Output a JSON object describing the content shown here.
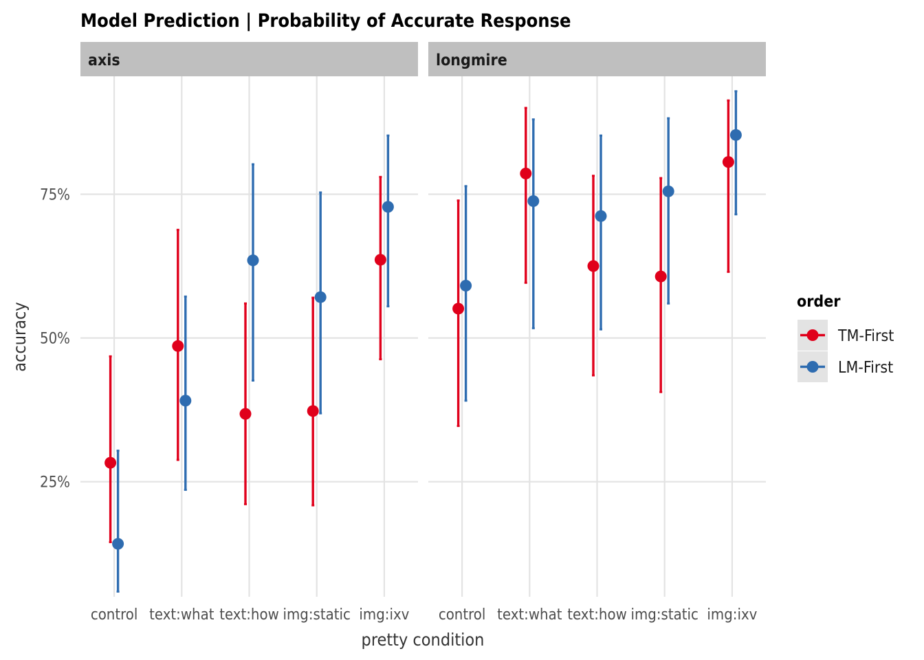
{
  "chart_data": {
    "type": "pointrange",
    "title": "Model Prediction | Probability of Accurate Response",
    "xlabel": "pretty condition",
    "ylabel": "accuracy",
    "categories": [
      "control",
      "text:what",
      "text:how",
      "img:static",
      "img:ixv"
    ],
    "y_ticks": [
      0.25,
      0.5,
      0.75
    ],
    "y_tick_labels": [
      "25%",
      "50%",
      "75%"
    ],
    "ylim": [
      0.05,
      0.955
    ],
    "grid": true,
    "legend": {
      "title": "order",
      "position": "right",
      "entries": [
        {
          "name": "TM-First",
          "color": "#E0001B"
        },
        {
          "name": "LM-First",
          "color": "#2E6CB0"
        }
      ]
    },
    "facets": [
      {
        "name": "axis",
        "series": [
          {
            "name": "TM-First",
            "values": [
              0.283,
              0.486,
              0.368,
              0.373,
              0.636
            ],
            "lower": [
              0.145,
              0.288,
              0.211,
              0.209,
              0.463
            ],
            "upper": [
              0.468,
              0.688,
              0.56,
              0.57,
              0.78
            ]
          },
          {
            "name": "LM-First",
            "values": [
              0.142,
              0.391,
              0.635,
              0.571,
              0.728
            ],
            "lower": [
              0.059,
              0.236,
              0.426,
              0.369,
              0.555
            ],
            "upper": [
              0.304,
              0.572,
              0.802,
              0.753,
              0.852
            ]
          }
        ]
      },
      {
        "name": "longmire",
        "series": [
          {
            "name": "TM-First",
            "values": [
              0.551,
              0.786,
              0.625,
              0.607,
              0.806
            ],
            "lower": [
              0.347,
              0.596,
              0.435,
              0.406,
              0.615
            ],
            "upper": [
              0.739,
              0.9,
              0.782,
              0.778,
              0.913
            ]
          },
          {
            "name": "LM-First",
            "values": [
              0.591,
              0.738,
              0.712,
              0.755,
              0.853
            ],
            "lower": [
              0.391,
              0.517,
              0.515,
              0.56,
              0.715
            ],
            "upper": [
              0.764,
              0.88,
              0.852,
              0.882,
              0.929
            ]
          }
        ]
      }
    ]
  }
}
